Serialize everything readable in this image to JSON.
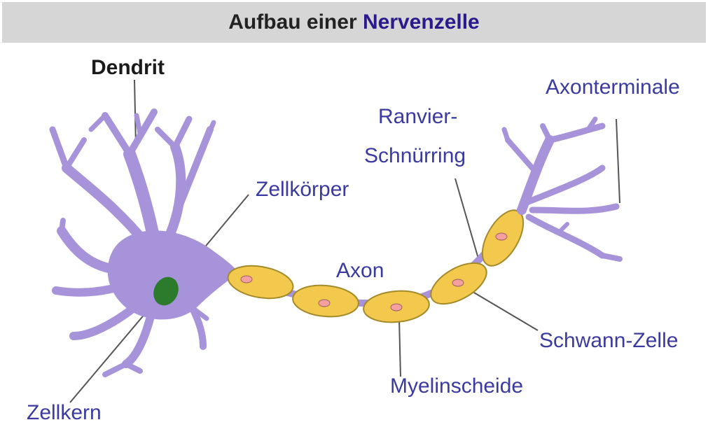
{
  "title": {
    "prefix": "Aufbau einer ",
    "highlight": "Nervenzelle"
  },
  "labels": {
    "dendrit": "Dendrit",
    "zellkoerper": "Zellkörper",
    "zellkern": "Zellkern",
    "axon": "Axon",
    "ranvier_1": "Ranvier-",
    "ranvier_2": "Schnürring",
    "axonterminale": "Axonterminale",
    "schwann": "Schwann-Zelle",
    "myelin": "Myelinscheide"
  },
  "colors": {
    "neuron": "#a793d9",
    "neuron_outline": "#7a66b0",
    "myelin": "#f2c94c",
    "myelin_outline": "#a38a2a",
    "nucleus_schwann": "#f4a0a0",
    "nucleus": "#2c7a2c",
    "label": "#3a3aa0",
    "label_dark": "#1a1a1a",
    "leader": "#555555",
    "title_bg": "#d6d6d6"
  }
}
